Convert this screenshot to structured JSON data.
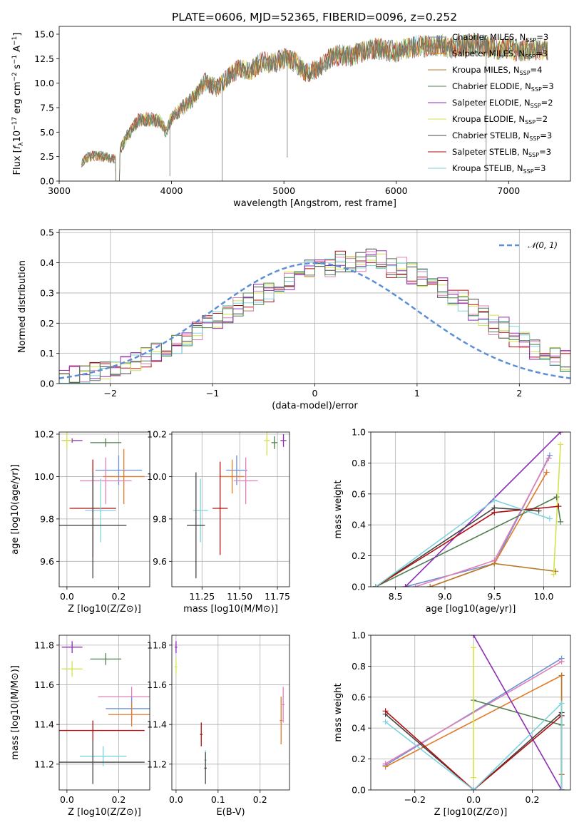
{
  "colors": {
    "Chabrier MILES": "#6c8fd6",
    "Salpeter MILES": "#e07b28",
    "Kroupa MILES": "#b87b2a",
    "Chabrier ELODIE": "#4f7f4f",
    "Salpeter ELODIE": "#8e2db4",
    "Kroupa ELODIE": "#d4e34a",
    "Chabrier STELIB": "#444444",
    "Salpeter STELIB": "#b01010",
    "Kroupa STELIB": "#7fd3de",
    "pink": "#e07fb8",
    "normal": "#5b8fd6"
  },
  "chart_data": [
    {
      "type": "line",
      "title": "PLATE=0606, MJD=52365, FIBERID=0096, z=0.252",
      "xlabel": "wavelength [Angstrom, rest frame]",
      "ylabel_parts": [
        "Flux [",
        "f",
        "λ",
        "10",
        "−17",
        " erg cm",
        "−2",
        " s",
        "−1",
        " A",
        "−1",
        "]"
      ],
      "xlim": [
        3000,
        7550
      ],
      "ylim": [
        0,
        15.8
      ],
      "xticks": [
        "3000",
        "4000",
        "5000",
        "6000",
        "7000"
      ],
      "yticks": [
        "0.0",
        "2.5",
        "5.0",
        "7.5",
        "10.0",
        "12.5",
        "15.0"
      ],
      "legend_position": "right",
      "spectrum_x": [
        3200,
        3250,
        3300,
        3400,
        3500,
        3600,
        3700,
        3800,
        3900,
        3950,
        4000,
        4100,
        4200,
        4300,
        4400,
        4500,
        4600,
        4700,
        4800,
        4900,
        5000,
        5100,
        5200,
        5300,
        5400,
        5500,
        5600,
        5700,
        5800,
        5900,
        6000,
        6100,
        6200,
        6300,
        6400,
        6500,
        6600,
        6700,
        6800,
        6900,
        7000,
        7100,
        7200,
        7300,
        7350
      ],
      "spectrum_y": [
        1.9,
        2.4,
        2.6,
        2.5,
        2.2,
        4.5,
        6.2,
        6.3,
        6.1,
        5.0,
        6.5,
        7.5,
        8.5,
        10.2,
        9.5,
        10.5,
        11.5,
        11.2,
        12.2,
        12.0,
        12.5,
        12.2,
        11.0,
        11.5,
        12.5,
        12.9,
        12.8,
        13.2,
        13.5,
        13.4,
        13.2,
        13.6,
        13.8,
        13.7,
        13.9,
        13.6,
        13.8,
        14.0,
        13.7,
        13.5,
        13.6,
        13.3,
        13.5,
        13.4,
        13.5
      ],
      "legend": [
        {
          "pre": "Chabrier MILES, N",
          "sub": "SSP",
          "post": "=3"
        },
        {
          "pre": "Salpeter MILES, N",
          "sub": "SSP",
          "post": "=3"
        },
        {
          "pre": "Kroupa MILES, N",
          "sub": "SSP",
          "post": "=4"
        },
        {
          "pre": "Chabrier ELODIE, N",
          "sub": "SSP",
          "post": "=3"
        },
        {
          "pre": "Salpeter ELODIE, N",
          "sub": "SSP",
          "post": "=2"
        },
        {
          "pre": "Kroupa ELODIE, N",
          "sub": "SSP",
          "post": "=2"
        },
        {
          "pre": "Chabrier STELIB, N",
          "sub": "SSP",
          "post": "=3"
        },
        {
          "pre": "Salpeter STELIB, N",
          "sub": "SSP",
          "post": "=3"
        },
        {
          "pre": "Kroupa STELIB, N",
          "sub": "SSP",
          "post": "=3"
        }
      ]
    },
    {
      "type": "bar",
      "xlabel": "(data-model)/error",
      "ylabel": "Normed distribution",
      "xlim": [
        -2.5,
        2.5
      ],
      "ylim": [
        0,
        0.51
      ],
      "xticks": [
        "−2",
        "−1",
        "0",
        "1",
        "2"
      ],
      "yticks": [
        "0.0",
        "0.1",
        "0.2",
        "0.3",
        "0.4",
        "0.5"
      ],
      "grid": true,
      "legend_label": "𝒩(0, 1)",
      "legend_position": "top-right",
      "bin_width": 0.1,
      "bins_start": -2.5,
      "histograms": [
        [
          0.02,
          0.025,
          0.03,
          0.04,
          0.045,
          0.05,
          0.06,
          0.07,
          0.09,
          0.11,
          0.12,
          0.13,
          0.15,
          0.17,
          0.19,
          0.21,
          0.23,
          0.25,
          0.27,
          0.29,
          0.31,
          0.33,
          0.35,
          0.36,
          0.38,
          0.37,
          0.39,
          0.4,
          0.39,
          0.41,
          0.42,
          0.4,
          0.39,
          0.38,
          0.37,
          0.35,
          0.33,
          0.31,
          0.29,
          0.27,
          0.25,
          0.22,
          0.2,
          0.18,
          0.16,
          0.14,
          0.12,
          0.1,
          0.09,
          0.07
        ],
        [
          0.018,
          0.03,
          0.028,
          0.042,
          0.05,
          0.055,
          0.065,
          0.075,
          0.085,
          0.1,
          0.125,
          0.13,
          0.145,
          0.175,
          0.195,
          0.205,
          0.235,
          0.255,
          0.265,
          0.3,
          0.3,
          0.34,
          0.34,
          0.37,
          0.37,
          0.38,
          0.38,
          0.41,
          0.4,
          0.4,
          0.41,
          0.41,
          0.38,
          0.39,
          0.36,
          0.36,
          0.32,
          0.32,
          0.28,
          0.28,
          0.24,
          0.23,
          0.19,
          0.19,
          0.15,
          0.15,
          0.11,
          0.11,
          0.08,
          0.08
        ]
      ],
      "normal_mu": 0,
      "normal_sigma": 1
    },
    {
      "type": "scatter",
      "panel": "age-vs-Z",
      "xlabel": "Z [log10(Z/Z⊙)]",
      "ylabel": "age  [log10(age/yr)]",
      "xlim": [
        -0.03,
        0.32
      ],
      "ylim": [
        9.48,
        10.21
      ],
      "xticks": [
        "0.0",
        "0.2"
      ],
      "yticks": [
        "9.6",
        "9.8",
        "10.0",
        "10.2"
      ],
      "points": [
        {
          "c": "Salpeter ELODIE",
          "x": 0.02,
          "y": 10.17,
          "xe": 0.04,
          "ye": 0.01
        },
        {
          "c": "Kroupa ELODIE",
          "x": 0.0,
          "y": 10.17,
          "xe": 0.02,
          "ye": 0.04
        },
        {
          "c": "Chabrier ELODIE",
          "x": 0.15,
          "y": 10.16,
          "xe": 0.06,
          "ye": 0.02
        },
        {
          "c": "Chabrier MILES",
          "x": 0.2,
          "y": 10.03,
          "xe": 0.09,
          "ye": 0.07
        },
        {
          "c": "Salpeter MILES",
          "x": 0.22,
          "y": 10.0,
          "xe": 0.08,
          "ye": 0.13
        },
        {
          "c": "pink",
          "x": 0.15,
          "y": 9.98,
          "xe": 0.1,
          "ye": 0.11
        },
        {
          "c": "Salpeter STELIB",
          "x": 0.1,
          "y": 9.85,
          "xe": 0.09,
          "ye": 0.23
        },
        {
          "c": "Kroupa STELIB",
          "x": 0.13,
          "y": 9.84,
          "xe": 0.06,
          "ye": 0.15
        },
        {
          "c": "Chabrier STELIB",
          "x": 0.1,
          "y": 9.77,
          "xe": 0.13,
          "ye": 0.25
        }
      ]
    },
    {
      "type": "scatter",
      "panel": "age-vs-mass",
      "xlabel": "mass [log10(M/M⊙)]",
      "ylabel": "",
      "xlim": [
        11.05,
        11.83
      ],
      "ylim": [
        9.48,
        10.21
      ],
      "xticks": [
        "11.25",
        "11.50",
        "11.75"
      ],
      "yticks": [
        "9.6",
        "9.8",
        "10.0",
        "10.2"
      ],
      "points": [
        {
          "c": "Salpeter ELODIE",
          "x": 11.79,
          "y": 10.17,
          "xe": 0.02,
          "ye": 0.03
        },
        {
          "c": "Kroupa ELODIE",
          "x": 11.68,
          "y": 10.17,
          "xe": 0.02,
          "ye": 0.07
        },
        {
          "c": "Chabrier ELODIE",
          "x": 11.73,
          "y": 10.16,
          "xe": 0.02,
          "ye": 0.03
        },
        {
          "c": "Chabrier MILES",
          "x": 11.48,
          "y": 10.03,
          "xe": 0.07,
          "ye": 0.07
        },
        {
          "c": "Salpeter MILES",
          "x": 11.45,
          "y": 10.0,
          "xe": 0.08,
          "ye": 0.08
        },
        {
          "c": "pink",
          "x": 11.54,
          "y": 9.98,
          "xe": 0.08,
          "ye": 0.11
        },
        {
          "c": "Salpeter STELIB",
          "x": 11.37,
          "y": 9.85,
          "xe": 0.05,
          "ye": 0.22
        },
        {
          "c": "Kroupa STELIB",
          "x": 11.24,
          "y": 9.84,
          "xe": 0.05,
          "ye": 0.15
        },
        {
          "c": "Chabrier STELIB",
          "x": 11.21,
          "y": 9.77,
          "xe": 0.06,
          "ye": 0.25
        }
      ]
    },
    {
      "type": "line",
      "panel": "weight-vs-age",
      "xlabel": "age  [log10(age/yr)]",
      "ylabel": "mass weight",
      "xlim": [
        8.25,
        10.27
      ],
      "ylim": [
        0,
        1
      ],
      "xticks": [
        "8.5",
        "9.0",
        "9.5",
        "10.0"
      ],
      "yticks": [
        "0.0",
        "0.2",
        "0.4",
        "0.6",
        "0.8",
        "1.0"
      ],
      "grid": true,
      "series": [
        {
          "c": "Chabrier MILES",
          "x": [
            8.6,
            9.5,
            10.06
          ],
          "y": [
            0.0,
            0.15,
            0.85
          ]
        },
        {
          "c": "Salpeter MILES",
          "x": [
            8.85,
            9.5,
            10.03
          ],
          "y": [
            0.0,
            0.15,
            0.74
          ]
        },
        {
          "c": "pink",
          "x": [
            8.7,
            9.5,
            10.05
          ],
          "y": [
            0.0,
            0.17,
            0.83
          ]
        },
        {
          "c": "Kroupa MILES",
          "x": [
            8.85,
            9.5,
            10.12
          ],
          "y": [
            0.0,
            0.15,
            0.1
          ]
        },
        {
          "c": "Chabrier ELODIE",
          "x": [
            8.3,
            10.13,
            10.17
          ],
          "y": [
            0.0,
            0.58,
            0.42
          ]
        },
        {
          "c": "Salpeter ELODIE",
          "x": [
            8.6,
            10.17
          ],
          "y": [
            0.0,
            1.0
          ]
        },
        {
          "c": "Kroupa ELODIE",
          "x": [
            10.1,
            10.17
          ],
          "y": [
            0.08,
            0.92
          ]
        },
        {
          "c": "Chabrier STELIB",
          "x": [
            8.3,
            9.5,
            9.95
          ],
          "y": [
            0.0,
            0.51,
            0.49
          ]
        },
        {
          "c": "Salpeter STELIB",
          "x": [
            8.3,
            9.5,
            10.15
          ],
          "y": [
            0.0,
            0.48,
            0.52
          ]
        },
        {
          "c": "Kroupa STELIB",
          "x": [
            8.3,
            9.5,
            10.06
          ],
          "y": [
            0.0,
            0.56,
            0.44
          ]
        }
      ]
    },
    {
      "type": "scatter",
      "panel": "mass-vs-Z",
      "xlabel": "Z [log10(Z/Z⊙)]",
      "ylabel": "mass [log10(M/M⊙)]",
      "xlim": [
        -0.03,
        0.32
      ],
      "ylim": [
        11.07,
        11.85
      ],
      "xticks": [
        "0.0",
        "0.2"
      ],
      "yticks": [
        "11.2",
        "11.4",
        "11.6",
        "11.8"
      ],
      "points": [
        {
          "c": "Salpeter ELODIE",
          "x": 0.02,
          "y": 11.79,
          "xe": 0.04,
          "ye": 0.03
        },
        {
          "c": "Chabrier ELODIE",
          "x": 0.15,
          "y": 11.73,
          "xe": 0.06,
          "ye": 0.03
        },
        {
          "c": "Kroupa ELODIE",
          "x": 0.02,
          "y": 11.68,
          "xe": 0.04,
          "ye": 0.04
        },
        {
          "c": "pink",
          "x": 0.25,
          "y": 11.54,
          "xe": 0.13,
          "ye": 0.05
        },
        {
          "c": "Chabrier MILES",
          "x": 0.25,
          "y": 11.48,
          "xe": 0.1,
          "ye": 0.06
        },
        {
          "c": "Salpeter MILES",
          "x": 0.25,
          "y": 11.45,
          "xe": 0.09,
          "ye": 0.06
        },
        {
          "c": "Salpeter STELIB",
          "x": 0.1,
          "y": 11.37,
          "xe": 0.2,
          "ye": 0.05
        },
        {
          "c": "Kroupa STELIB",
          "x": 0.14,
          "y": 11.24,
          "xe": 0.09,
          "ye": 0.05
        },
        {
          "c": "Chabrier STELIB",
          "x": 0.1,
          "y": 11.21,
          "xe": 0.2,
          "ye": 0.11
        }
      ]
    },
    {
      "type": "scatter",
      "panel": "mass-vs-EBV",
      "xlabel": "E(B-V)",
      "ylabel": "",
      "xlim": [
        -0.01,
        0.27
      ],
      "ylim": [
        11.07,
        11.85
      ],
      "xticks": [
        "0.0",
        "0.1",
        "0.2"
      ],
      "yticks": [
        "11.2",
        "11.4",
        "11.6",
        "11.8"
      ],
      "points": [
        {
          "c": "Salpeter ELODIE",
          "x": 0.0,
          "y": 11.79,
          "xe": 0.003,
          "ye": 0.03
        },
        {
          "c": "Kroupa ELODIE",
          "x": 0.0,
          "y": 11.69,
          "xe": 0.003,
          "ye": 0.04
        },
        {
          "c": "pink",
          "x": 0.255,
          "y": 11.5,
          "xe": 0.003,
          "ye": 0.09
        },
        {
          "c": "Salpeter MILES",
          "x": 0.25,
          "y": 11.42,
          "xe": 0.003,
          "ye": 0.12
        },
        {
          "c": "Salpeter STELIB",
          "x": 0.06,
          "y": 11.35,
          "xe": 0.003,
          "ye": 0.06
        },
        {
          "c": "Kroupa STELIB",
          "x": 0.07,
          "y": 11.22,
          "xe": 0.003,
          "ye": 0.05
        },
        {
          "c": "Chabrier STELIB",
          "x": 0.07,
          "y": 11.18,
          "xe": 0.003,
          "ye": 0.08
        }
      ]
    },
    {
      "type": "line",
      "panel": "weight-vs-Z",
      "xlabel": "Z [log10(Z/Z⊙)]",
      "ylabel": "mass weight",
      "xlim": [
        -0.35,
        0.33
      ],
      "ylim": [
        0,
        1
      ],
      "xticks": [
        "−0.2",
        "0.0",
        "0.2"
      ],
      "yticks": [
        "0.0",
        "0.2",
        "0.4",
        "0.6",
        "0.8",
        "1.0"
      ],
      "grid": true,
      "series": [
        {
          "c": "Chabrier MILES",
          "x": [
            -0.3,
            0.3
          ],
          "y": [
            0.16,
            0.85
          ]
        },
        {
          "c": "Salpeter MILES",
          "x": [
            -0.3,
            0.3,
            0.3
          ],
          "y": [
            0.15,
            0.74,
            0.1
          ]
        },
        {
          "c": "pink",
          "x": [
            -0.3,
            0.3
          ],
          "y": [
            0.17,
            0.83
          ]
        },
        {
          "c": "Kroupa MILES",
          "x": [
            0.3,
            0.3
          ],
          "y": [
            0.74,
            0.1
          ]
        },
        {
          "c": "Chabrier ELODIE",
          "x": [
            0.0,
            0.3,
            0.3
          ],
          "y": [
            0.58,
            0.42,
            0.0
          ]
        },
        {
          "c": "Salpeter ELODIE",
          "x": [
            0.0,
            0.3
          ],
          "y": [
            1.0,
            0.0
          ]
        },
        {
          "c": "Kroupa ELODIE",
          "x": [
            0.0,
            0.0
          ],
          "y": [
            0.92,
            0.08
          ]
        },
        {
          "c": "Chabrier STELIB",
          "x": [
            -0.3,
            0.0,
            0.3,
            0.3
          ],
          "y": [
            0.49,
            0.0,
            0.5,
            0.0
          ]
        },
        {
          "c": "Salpeter STELIB",
          "x": [
            -0.3,
            0.0,
            0.3
          ],
          "y": [
            0.51,
            0.0,
            0.48
          ]
        },
        {
          "c": "Kroupa STELIB",
          "x": [
            -0.3,
            0.0,
            0.3,
            0.3
          ],
          "y": [
            0.44,
            0.0,
            0.56,
            0.0
          ]
        }
      ]
    }
  ]
}
